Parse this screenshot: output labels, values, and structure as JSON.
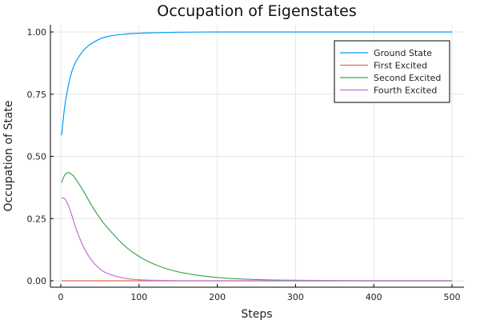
{
  "chart_data": {
    "type": "line",
    "title": "Occupation of Eigenstates",
    "xlabel": "Steps",
    "ylabel": "Occupation of State",
    "xlim": [
      0,
      500
    ],
    "ylim": [
      0,
      1
    ],
    "xticks": [
      0,
      100,
      200,
      300,
      400,
      500
    ],
    "xtick_labels": [
      "0",
      "100",
      "200",
      "300",
      "400",
      "500"
    ],
    "yticks": [
      0,
      0.25,
      0.5,
      0.75,
      1
    ],
    "ytick_labels": [
      "0.00",
      "0.25",
      "0.50",
      "0.75",
      "1.00"
    ],
    "grid": true,
    "legend_position": "top-right",
    "x": [
      1,
      5,
      10,
      15,
      20,
      30,
      40,
      50,
      60,
      80,
      100,
      120,
      150,
      200,
      250,
      300,
      350,
      400,
      450,
      500
    ],
    "series": [
      {
        "name": "Ground State",
        "color": "#009AFA",
        "values": [
          0.585,
          0.7,
          0.79,
          0.85,
          0.885,
          0.93,
          0.955,
          0.972,
          0.982,
          0.991,
          0.995,
          0.997,
          0.999,
          1.0,
          1.0,
          1.0,
          1.0,
          1.0,
          1.0,
          1.0
        ]
      },
      {
        "name": "First Excited",
        "color": "#E36F47",
        "values": [
          0,
          0,
          0,
          0,
          0,
          0,
          0,
          0,
          0,
          0,
          0,
          0,
          0,
          0,
          0,
          0,
          0,
          0,
          0,
          0
        ]
      },
      {
        "name": "Second Excited",
        "color": "#3EA44E",
        "values": [
          0.395,
          0.425,
          0.435,
          0.425,
          0.405,
          0.355,
          0.3,
          0.252,
          0.212,
          0.145,
          0.098,
          0.066,
          0.036,
          0.013,
          0.005,
          0.002,
          0.001,
          0.0,
          0.0,
          0.0
        ]
      },
      {
        "name": "Fourth Excited",
        "color": "#C371D2",
        "values": [
          0.333,
          0.33,
          0.3,
          0.255,
          0.205,
          0.13,
          0.08,
          0.048,
          0.029,
          0.011,
          0.004,
          0.002,
          0.0,
          0.0,
          0.0,
          0.0,
          0.0,
          0.0,
          0.0,
          0.0
        ]
      }
    ]
  }
}
